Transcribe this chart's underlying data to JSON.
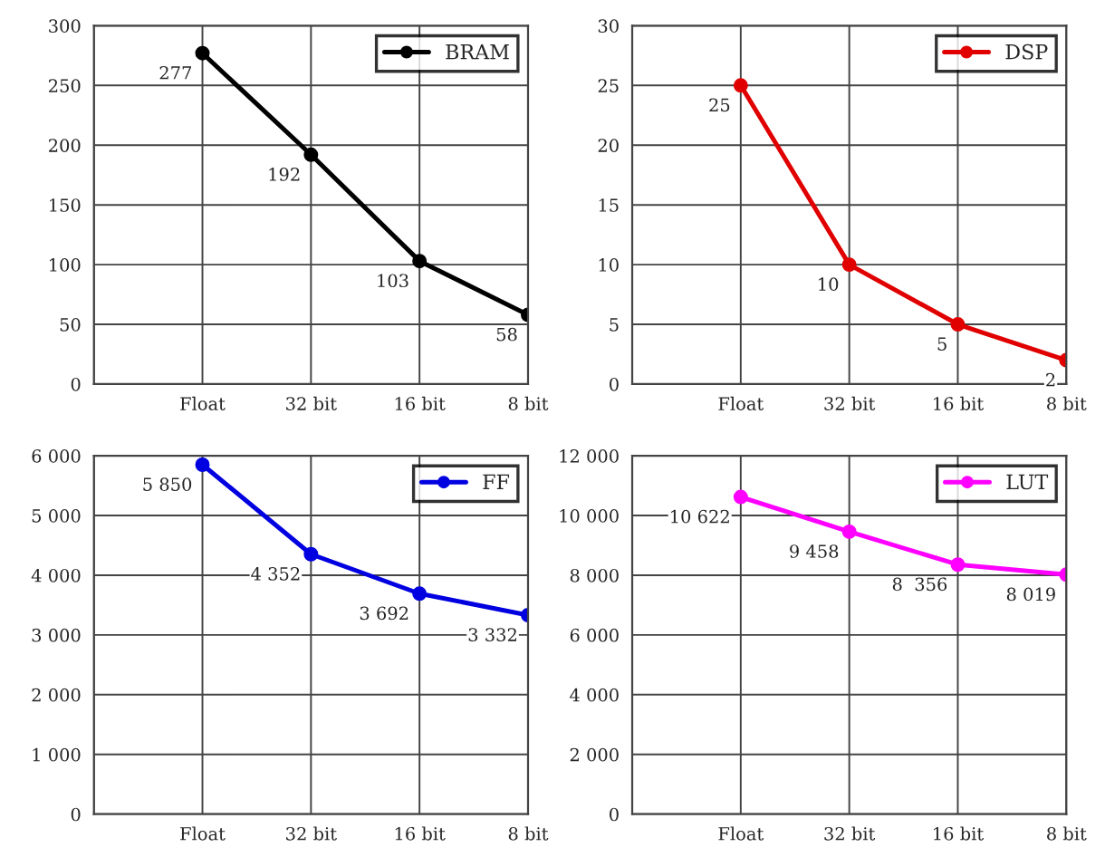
{
  "chart_data": [
    {
      "type": "line",
      "categories": [
        null,
        "Float",
        "32 bit",
        "16 bit",
        "8 bit"
      ],
      "series": [
        {
          "name": "BRAM",
          "color": "#000000",
          "values": [
            null,
            277,
            192,
            103,
            58
          ],
          "value_labels": [
            null,
            "277",
            "192",
            "103",
            "58"
          ]
        }
      ],
      "ylim": [
        0,
        300
      ],
      "yticks": [
        0,
        50,
        100,
        150,
        200,
        250,
        300
      ],
      "grid": true,
      "legend": "top right",
      "marker": "circle"
    },
    {
      "type": "line",
      "categories": [
        null,
        "Float",
        "32 bit",
        "16 bit",
        "8 bit"
      ],
      "series": [
        {
          "name": "DSP",
          "color": "#e00000",
          "values": [
            null,
            25,
            10,
            5,
            2
          ],
          "value_labels": [
            null,
            "25",
            "10",
            "5",
            "2"
          ]
        }
      ],
      "ylim": [
        0,
        30
      ],
      "yticks": [
        0,
        5,
        10,
        15,
        20,
        25,
        30
      ],
      "grid": true,
      "legend": "top right",
      "marker": "circle"
    },
    {
      "type": "line",
      "categories": [
        null,
        "Float",
        "32 bit",
        "16 bit",
        "8 bit"
      ],
      "series": [
        {
          "name": "FF",
          "color": "#0000e0",
          "values": [
            null,
            5850,
            4352,
            3692,
            3332
          ],
          "value_labels": [
            null,
            "5 850",
            "4 352",
            "3 692",
            "3 332"
          ]
        }
      ],
      "ylim": [
        0,
        6000
      ],
      "yticks": [
        0,
        {
          "value": 1000,
          "label": "1 000"
        },
        {
          "value": 2000,
          "label": "2 000"
        },
        {
          "value": 3000,
          "label": "3 000"
        },
        {
          "value": 4000,
          "label": "4 000"
        },
        {
          "value": 5000,
          "label": "5 000"
        },
        {
          "value": 6000,
          "label": "6 000"
        }
      ],
      "grid": true,
      "legend": "top right",
      "marker": "circle"
    },
    {
      "type": "line",
      "categories": [
        null,
        "Float",
        "32 bit",
        "16 bit",
        "8 bit"
      ],
      "series": [
        {
          "name": "LUT",
          "color": "#ff00ff",
          "values": [
            null,
            10622,
            9458,
            8356,
            8019
          ],
          "value_labels": [
            null,
            "10 622",
            "9 458",
            "8  356",
            "8 019"
          ]
        }
      ],
      "ylim": [
        0,
        12000
      ],
      "yticks": [
        0,
        {
          "value": 2000,
          "label": "2 000"
        },
        {
          "value": 4000,
          "label": "4 000"
        },
        {
          "value": 6000,
          "label": "6 000"
        },
        {
          "value": 8000,
          "label": "8 000"
        },
        {
          "value": 10000,
          "label": "10 000"
        },
        {
          "value": 12000,
          "label": "12 000"
        }
      ],
      "grid": true,
      "legend": "top right",
      "marker": "circle"
    }
  ]
}
